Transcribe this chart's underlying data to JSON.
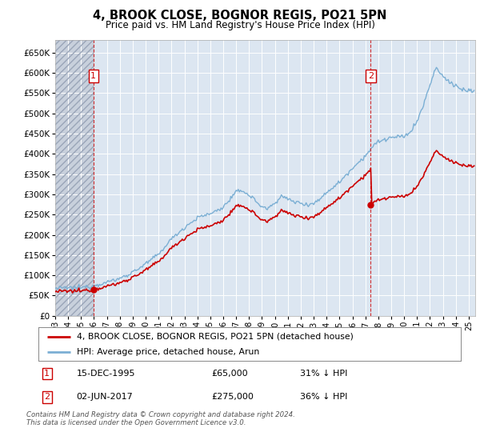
{
  "title": "4, BROOK CLOSE, BOGNOR REGIS, PO21 5PN",
  "subtitle": "Price paid vs. HM Land Registry's House Price Index (HPI)",
  "ylim": [
    0,
    680000
  ],
  "xlim_start": 1993.0,
  "xlim_end": 2025.5,
  "hpi_color": "#7bafd4",
  "price_color": "#cc0000",
  "marker_color": "#cc0000",
  "vline_color": "#cc0000",
  "bg_color": "#dce6f1",
  "hatch_color": "#c8d0dc",
  "grid_color": "#ffffff",
  "annotation_box_color": "#cc0000",
  "legend_entries": [
    "4, BROOK CLOSE, BOGNOR REGIS, PO21 5PN (detached house)",
    "HPI: Average price, detached house, Arun"
  ],
  "sale1_date": "15-DEC-1995",
  "sale1_price": "£65,000",
  "sale1_pct": "31% ↓ HPI",
  "sale1_x": 1995.96,
  "sale1_y": 65000,
  "sale1_label": "1",
  "sale2_date": "02-JUN-2017",
  "sale2_price": "£275,000",
  "sale2_pct": "36% ↓ HPI",
  "sale2_x": 2017.42,
  "sale2_y": 275000,
  "sale2_label": "2",
  "footer": "Contains HM Land Registry data © Crown copyright and database right 2024.\nThis data is licensed under the Open Government Licence v3.0."
}
